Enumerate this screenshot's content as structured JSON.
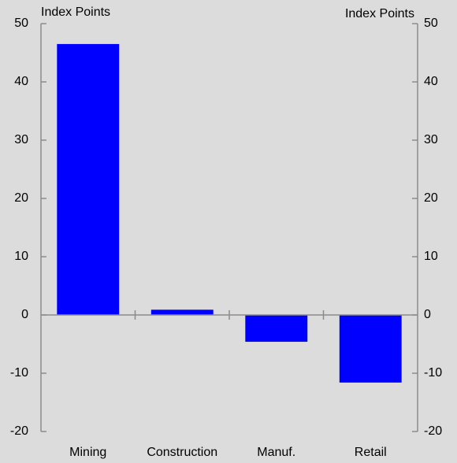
{
  "chart_data": {
    "type": "bar",
    "y_label": "Index Points",
    "y2_label": "Index Points",
    "categories": [
      "Mining",
      "Construction",
      "Manuf.",
      "Retail"
    ],
    "values": [
      46.5,
      0.9,
      -4.6,
      -11.6
    ],
    "color": "#0000ff",
    "ylim": [
      -20,
      50
    ],
    "yticks": [
      -20,
      -10,
      0,
      10,
      20,
      30,
      40,
      50
    ],
    "y2lim": [
      -20,
      50
    ],
    "y2ticks": [
      -20,
      -10,
      0,
      10,
      20,
      30,
      40,
      50
    ]
  }
}
